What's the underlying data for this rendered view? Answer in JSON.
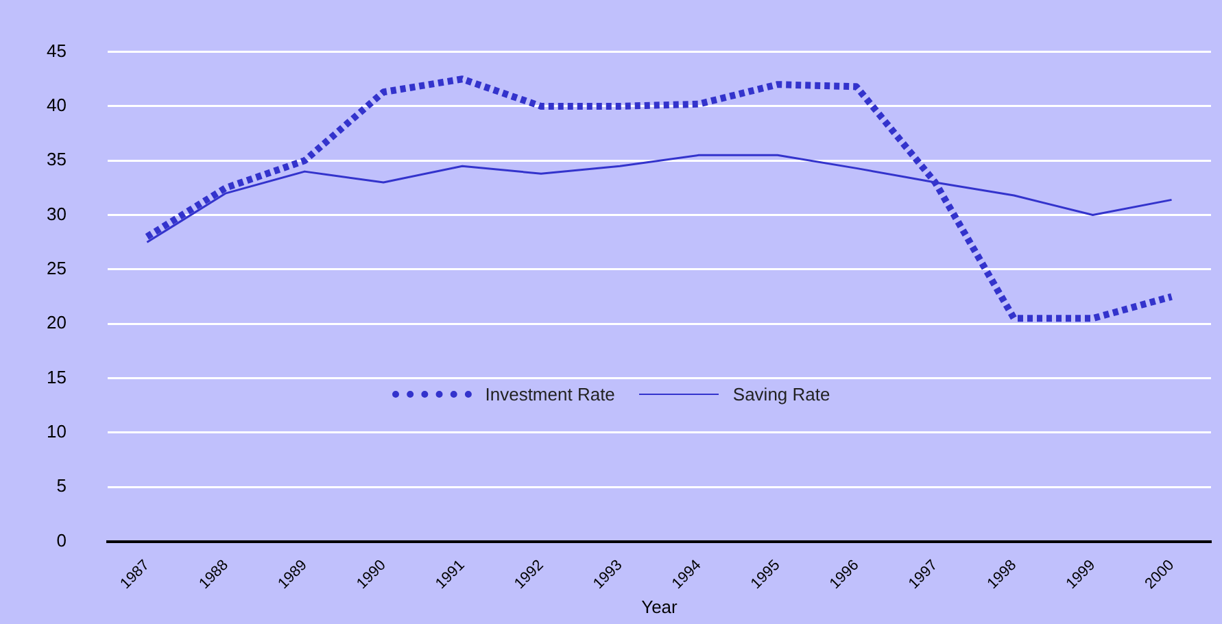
{
  "chart_data": {
    "type": "line",
    "xlabel": "Year",
    "categories": [
      "1987",
      "1988",
      "1989",
      "1990",
      "1991",
      "1992",
      "1993",
      "1994",
      "1995",
      "1996",
      "1997",
      "1998",
      "1999",
      "2000"
    ],
    "series": [
      {
        "name": "Investment Rate",
        "color": "#3333cc",
        "line_style": "dotted",
        "values": [
          28,
          32.5,
          35,
          41.3,
          42.5,
          40,
          40,
          40.2,
          42,
          41.8,
          33,
          20.5,
          20.5,
          22.5
        ]
      },
      {
        "name": "Saving Rate",
        "color": "#3333cc",
        "line_style": "solid",
        "values": [
          27.5,
          32,
          34,
          33,
          34.5,
          33.8,
          34.5,
          35.5,
          35.5,
          34.3,
          33,
          31.8,
          30,
          31.4
        ]
      }
    ],
    "ylim": [
      0,
      45
    ],
    "yticks": [
      0,
      5,
      10,
      15,
      20,
      25,
      30,
      35,
      40,
      45
    ],
    "grid": "y",
    "legend": "center",
    "marker": "none"
  }
}
